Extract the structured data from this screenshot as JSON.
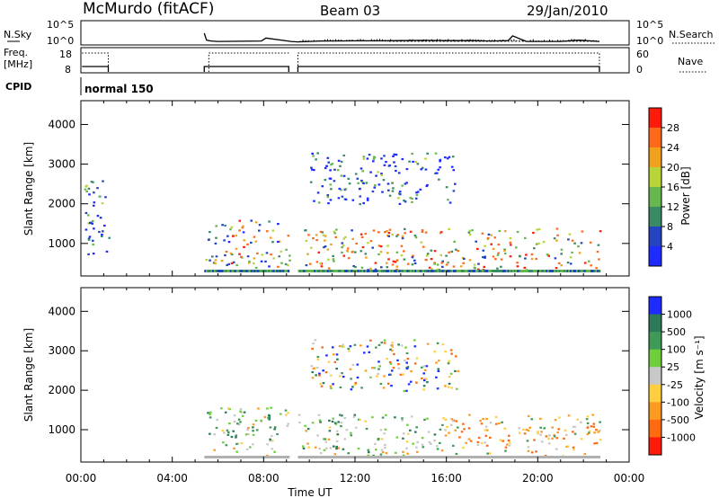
{
  "header": {
    "station": "McMurdo (fitACF)",
    "beam": "Beam 03",
    "date": "29/Jan/2010"
  },
  "chart_data": [
    {
      "panel": "noise-sky",
      "type": "line",
      "ylabel": "N.Sky",
      "right_label": "N.Search",
      "left_ticks": [
        "10^5",
        "10^0"
      ],
      "right_ticks": [
        "10^5",
        "10^0"
      ],
      "ylim": [
        0,
        5
      ],
      "x_hours": [
        5.4,
        5.5,
        5.7,
        6.0,
        7.0,
        7.9,
        8.1,
        9.2,
        9.5,
        10.5,
        12.0,
        13.0,
        14.0,
        15.0,
        16.0,
        17.0,
        18.0,
        18.7,
        18.9,
        19.5,
        21.0,
        21.8,
        22.7
      ],
      "y_log": [
        2.5,
        0.9,
        0.7,
        0.6,
        0.65,
        0.7,
        1.4,
        0.6,
        0.5,
        0.7,
        0.75,
        0.75,
        0.8,
        0.85,
        0.8,
        0.8,
        0.7,
        0.8,
        1.9,
        0.6,
        0.6,
        0.9,
        0.6
      ]
    },
    {
      "panel": "frequency",
      "type": "line",
      "ylabel": "Freq.",
      "yunit": "[MHz]",
      "right_label": "Nave",
      "left_ticks": [
        "18",
        "8"
      ],
      "right_ticks": [
        "60",
        "0"
      ],
      "ylim": [
        8,
        18
      ]
    },
    {
      "panel": "cpid",
      "type": "table",
      "label": "CPID",
      "mode": "normal 150"
    },
    {
      "panel": "power",
      "type": "heatmap",
      "ylabel": "Slant Range [km]",
      "colorbar_label": "Power [dB]",
      "yticks": [
        1000,
        2000,
        3000,
        4000
      ],
      "ylim": [
        180,
        4600
      ],
      "xlim": [
        0,
        24
      ],
      "colorbar_ticks": [
        "4",
        "8",
        "12",
        "16",
        "20",
        "24",
        "28"
      ],
      "colorbar_colors": [
        "#1e2bff",
        "#2444c2",
        "#3a8a66",
        "#66b84e",
        "#b8d43a",
        "#f0a21e",
        "#ff6a1a",
        "#ff1a0a"
      ],
      "echo_regions": [
        {
          "t0": 5.4,
          "t1": 9.1,
          "r0": 350,
          "r1": 1600,
          "level": 3
        },
        {
          "t0": 9.5,
          "t1": 22.7,
          "r0": 350,
          "r1": 1400,
          "level": 4
        },
        {
          "t0": 10.0,
          "t1": 16.5,
          "r0": 2000,
          "r1": 3300,
          "level": 1
        },
        {
          "t0": 0.1,
          "t1": 1.2,
          "r0": 600,
          "r1": 2700,
          "level": 1
        }
      ]
    },
    {
      "panel": "velocity",
      "type": "heatmap",
      "ylabel": "Slant Range [km]",
      "xlabel": "Time UT",
      "colorbar_label": "Velocity [m s⁻¹]",
      "yticks": [
        1000,
        2000,
        3000,
        4000
      ],
      "ylim": [
        180,
        4600
      ],
      "xlim": [
        0,
        24
      ],
      "xticks": [
        "00:00",
        "04:00",
        "08:00",
        "12:00",
        "16:00",
        "20:00",
        "00:00"
      ],
      "colorbar_ticks": [
        "1000",
        "500",
        "100",
        "25",
        "-25",
        "-100",
        "-500",
        "-1000"
      ],
      "colorbar_colors": [
        "#1e2bff",
        "#2d7a5a",
        "#3f9a58",
        "#6fcf3a",
        "#c8c8c8",
        "#ffcf40",
        "#ff9a20",
        "#ff6a10",
        "#ff1a0a"
      ],
      "echo_regions": [
        {
          "t0": 5.4,
          "t1": 9.1,
          "r0": 350,
          "r1": 1600,
          "dominant": "toward"
        },
        {
          "t0": 9.5,
          "t1": 16.0,
          "r0": 350,
          "r1": 1400,
          "dominant": "toward"
        },
        {
          "t0": 16.0,
          "t1": 22.7,
          "r0": 350,
          "r1": 1400,
          "dominant": "away"
        },
        {
          "t0": 10.0,
          "t1": 16.5,
          "r0": 2000,
          "r1": 3300,
          "dominant": "mixed"
        }
      ]
    }
  ]
}
